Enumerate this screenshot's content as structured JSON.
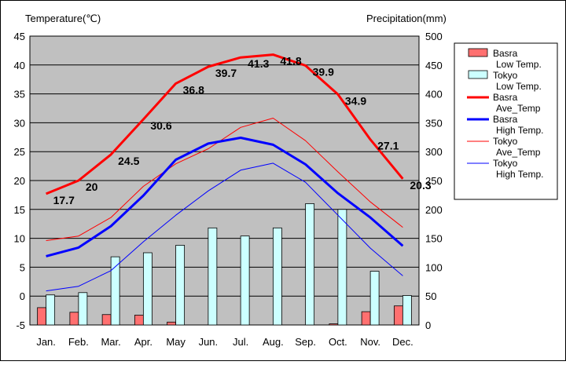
{
  "chart_data": {
    "type": "bar+line",
    "categories": [
      "Jan.",
      "Feb.",
      "Mar.",
      "Apr.",
      "May",
      "Jun.",
      "Jul.",
      "Aug.",
      "Sep.",
      "Oct.",
      "Nov.",
      "Dec."
    ],
    "ylabel_left": "Temperature(℃)",
    "ylabel_right": "Precipitation(mm)",
    "ylim_left": [
      -5,
      45
    ],
    "ylim_right": [
      0,
      500
    ],
    "yticks_left": [
      "45",
      "40",
      "35",
      "30",
      "25",
      "20",
      "15",
      "10",
      "5",
      "0",
      "-5"
    ],
    "yticks_right": [
      "500",
      "450",
      "400",
      "350",
      "300",
      "250",
      "200",
      "150",
      "100",
      "50",
      "0"
    ],
    "grid": true,
    "plot_background": "#c0c0c0",
    "legend_position": "right",
    "bar_series": [
      {
        "legend_line1": "Basra",
        "legend_line2": "Low Temp.",
        "color": "#ff7070",
        "values": [
          30,
          22,
          18,
          17,
          5,
          0,
          0,
          0,
          0,
          2,
          23,
          33
        ]
      },
      {
        "legend_line1": "Tokyo",
        "legend_line2": "Low Temp.",
        "color": "#ccffff",
        "values": [
          52,
          56,
          118,
          125,
          138,
          168,
          154,
          168,
          210,
          200,
          93,
          51
        ]
      }
    ],
    "line_series": [
      {
        "legend_line1": "Basra",
        "legend_line2": "Ave_Temp",
        "color": "#ff0000",
        "width": 3,
        "values": [
          17.7,
          20,
          24.5,
          30.6,
          36.8,
          39.7,
          41.3,
          41.8,
          39.9,
          34.9,
          27.1,
          20.3
        ],
        "labels": [
          "17.7",
          "20",
          "24.5",
          "30.6",
          "36.8",
          "39.7",
          "41.3",
          "41.8",
          "39.9",
          "34.9",
          "27.1",
          "20.3"
        ]
      },
      {
        "legend_line1": "Basra",
        "legend_line2": "High Temp.",
        "color": "#0000ff",
        "width": 3,
        "values": [
          6.9,
          8.4,
          12.1,
          17.4,
          23.6,
          26.4,
          27.4,
          26.2,
          22.8,
          17.8,
          13.6,
          8.7
        ]
      },
      {
        "legend_line1": "Tokyo",
        "legend_line2": "Ave_Temp",
        "color": "#ff0000",
        "width": 1,
        "values": [
          9.6,
          10.4,
          13.6,
          19.0,
          22.9,
          25.5,
          29.2,
          30.8,
          26.9,
          21.5,
          16.3,
          11.9
        ]
      },
      {
        "legend_line1": "Tokyo",
        "legend_line2": "High Temp.",
        "color": "#0000ff",
        "width": 1,
        "values": [
          0.9,
          1.7,
          4.4,
          9.4,
          14.0,
          18.2,
          21.8,
          23.0,
          19.7,
          14.0,
          8.3,
          3.5
        ]
      }
    ]
  }
}
